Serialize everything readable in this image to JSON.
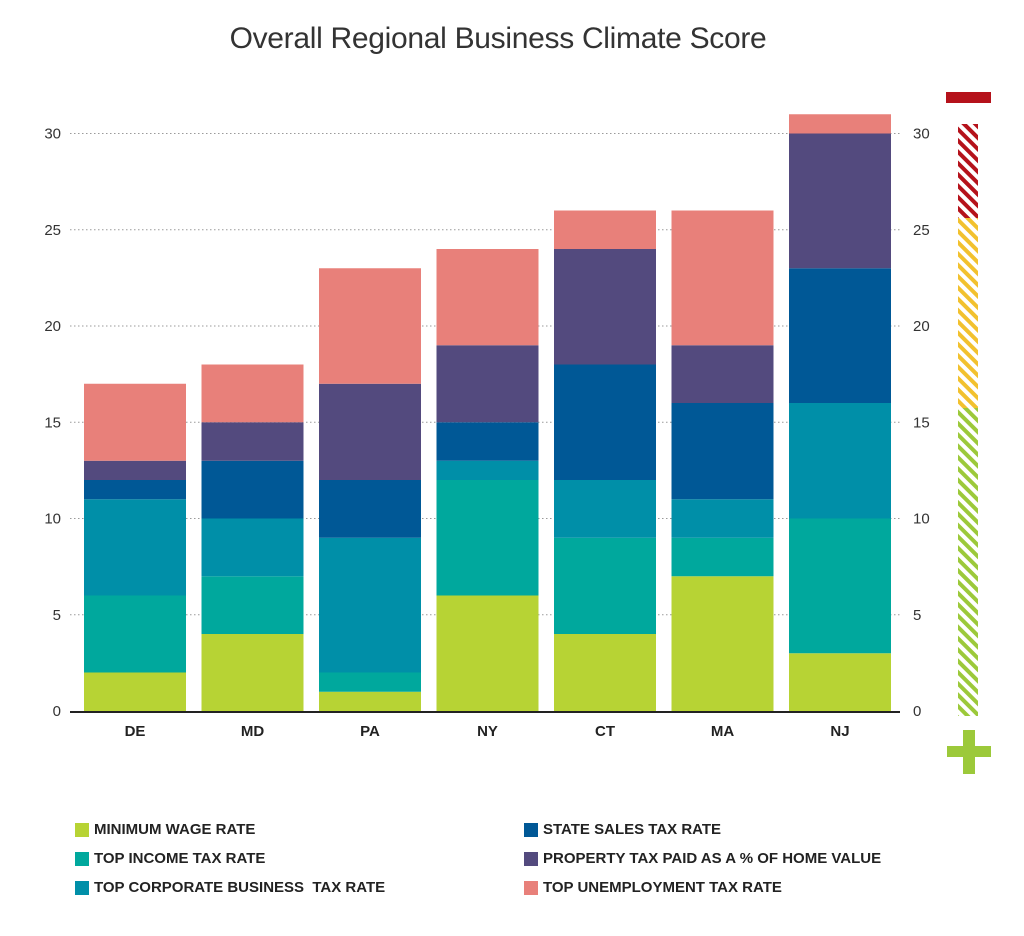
{
  "chart_data": {
    "type": "bar",
    "stacked": true,
    "title": "Overall Regional Business Climate Score",
    "xlabel": "",
    "ylabel": "",
    "ylim": [
      0,
      31
    ],
    "yticks": [
      0,
      5,
      10,
      15,
      20,
      25,
      30
    ],
    "grid": "horizontal dotted",
    "secondary_y_axis": true,
    "categories": [
      "DE",
      "MD",
      "PA",
      "NY",
      "CT",
      "MA",
      "NJ"
    ],
    "series": [
      {
        "name": "MINIMUM WAGE RATE",
        "color": "#b7d334",
        "values": [
          2,
          4,
          1,
          6,
          4,
          7,
          3
        ]
      },
      {
        "name": "TOP INCOME TAX RATE",
        "color": "#00a89d",
        "values": [
          4,
          3,
          1,
          6,
          5,
          2,
          7
        ]
      },
      {
        "name": "TOP CORPORATE BUSINESS  TAX RATE",
        "color": "#008fa8",
        "values": [
          5,
          3,
          7,
          1,
          3,
          2,
          6
        ]
      },
      {
        "name": "STATE SALES TAX RATE",
        "color": "#005896",
        "values": [
          1,
          3,
          3,
          2,
          6,
          5,
          7
        ]
      },
      {
        "name": "PROPERTY TAX PAID AS A % OF HOME VALUE",
        "color": "#534a7e",
        "values": [
          1,
          2,
          5,
          4,
          6,
          3,
          7
        ]
      },
      {
        "name": "TOP UNEMPLOYMENT TAX RATE",
        "color": "#e8807a",
        "values": [
          4,
          3,
          6,
          5,
          2,
          7,
          1
        ]
      }
    ],
    "legend_position": "bottom",
    "scale_indicator": {
      "top_symbol": "minus",
      "bottom_symbol": "plus",
      "colors": {
        "red": "#b5121b",
        "yellow": "#f2c12e",
        "green": "#9cc93a"
      }
    }
  }
}
